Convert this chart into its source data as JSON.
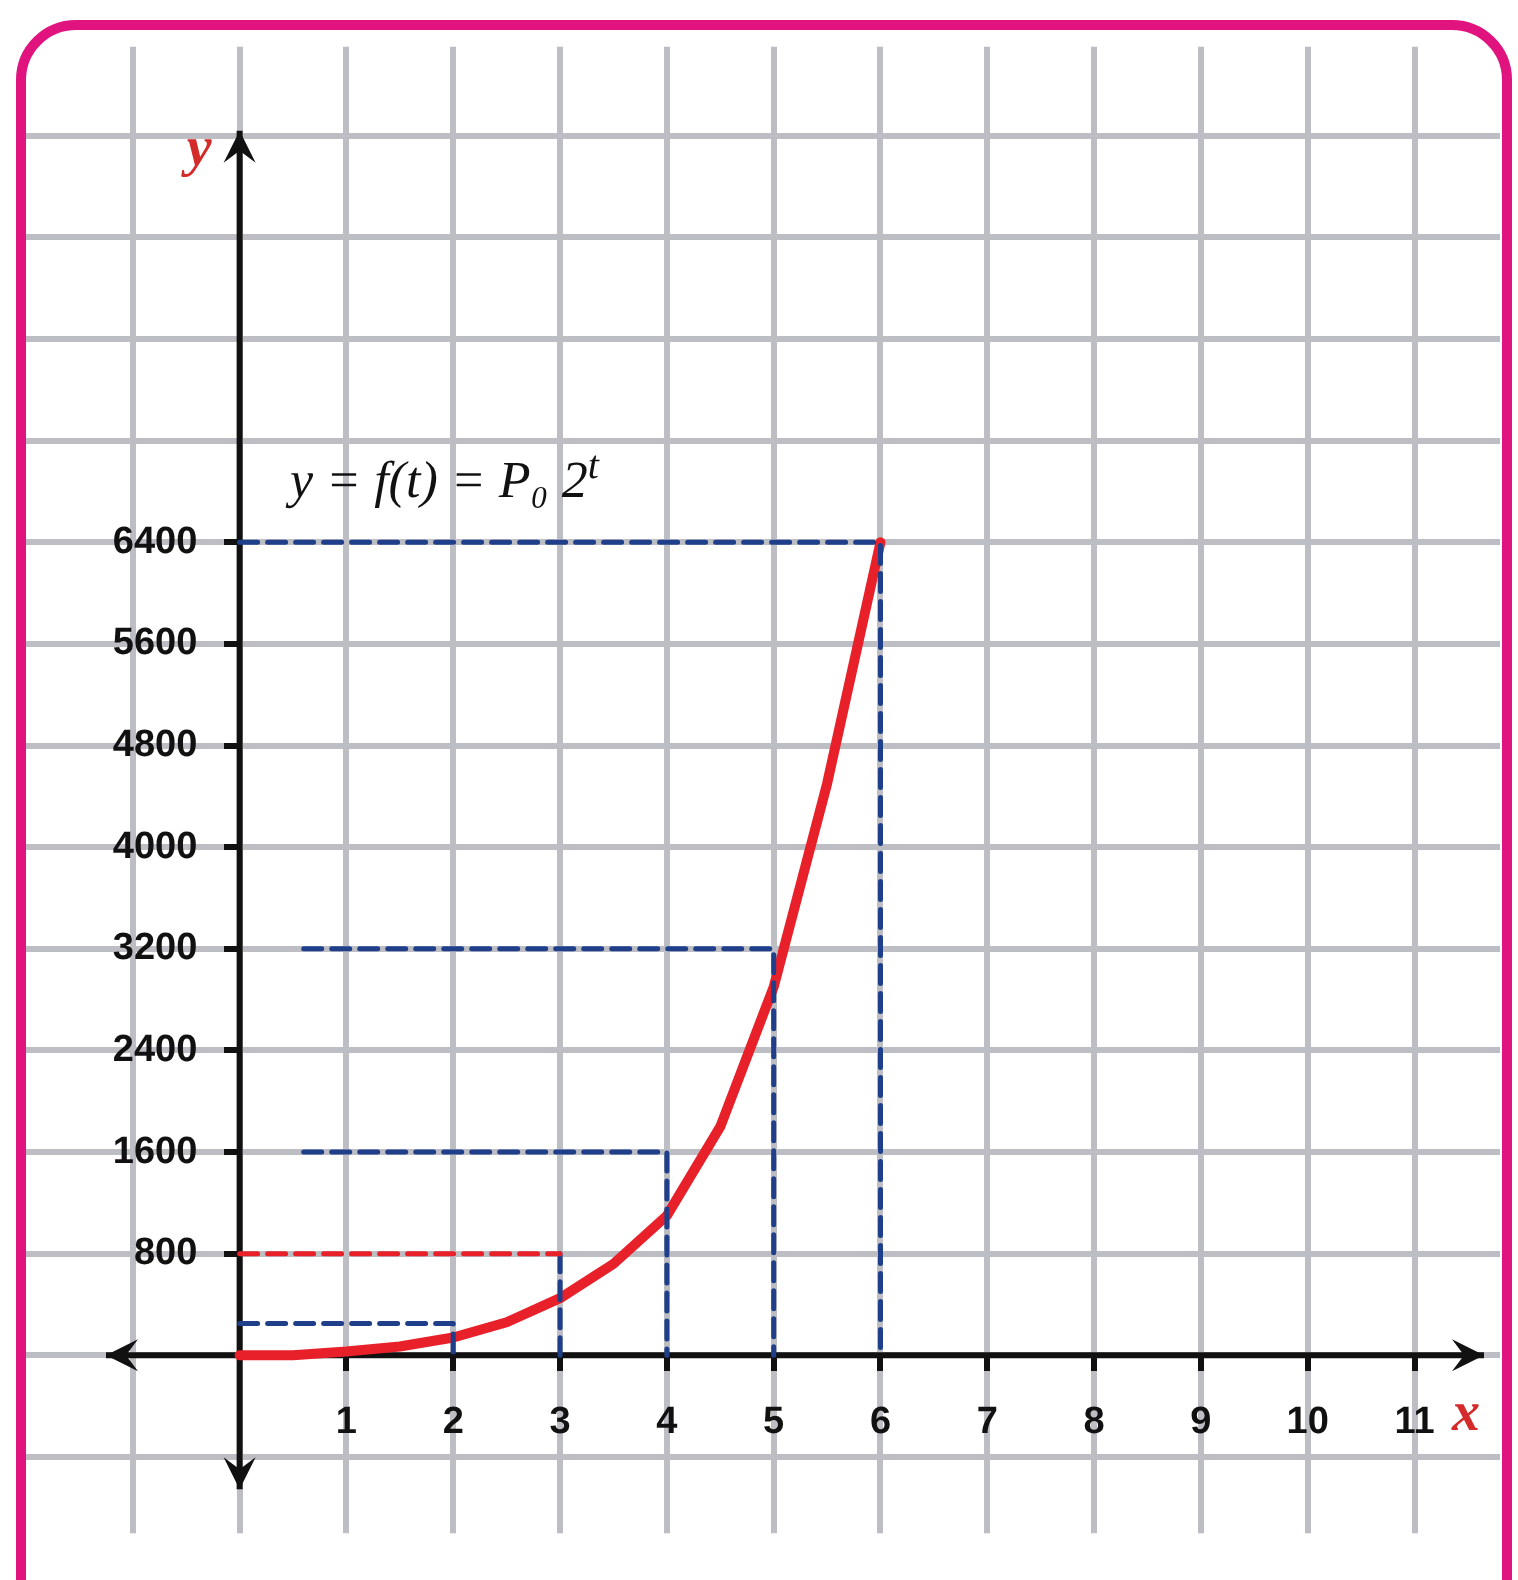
{
  "chart_data": {
    "type": "line",
    "xlabel": "x",
    "ylabel": "y",
    "xlim": [
      -2,
      11.8
    ],
    "ylim": [
      -1400,
      10300
    ],
    "xticks": [
      {
        "value": -1,
        "label": null
      },
      {
        "value": 0,
        "label": null
      },
      1,
      2,
      3,
      4,
      5,
      6,
      7,
      8,
      9,
      10,
      11
    ],
    "yticks": [
      {
        "value": -800,
        "label": null
      },
      {
        "value": 0,
        "label": null
      },
      800,
      1600,
      2400,
      3200,
      4000,
      4800,
      5600,
      6400,
      {
        "value": 7200,
        "label": null
      },
      {
        "value": 8000,
        "label": null
      },
      {
        "value": 8800,
        "label": null
      },
      {
        "value": 9600,
        "label": null
      }
    ],
    "grid": true,
    "legend": false,
    "annotations": [
      "y = f(t) = P₀ 2$^{t}$"
    ],
    "series": [
      {
        "type": "line",
        "color": "#1f3f8a",
        "x": [
          0,
          2,
          2
        ],
        "values": [
          250,
          250,
          0
        ],
        "marker": "none",
        "line_style": "dashed"
      },
      {
        "type": "line",
        "color": "#e8202a",
        "x": [
          0,
          3
        ],
        "values": [
          800,
          800
        ],
        "marker": "none",
        "line_style": "dashed"
      },
      {
        "type": "line",
        "color": "#1f3f8a",
        "x": [
          3,
          3
        ],
        "values": [
          800,
          0
        ],
        "marker": "none",
        "line_style": "dashed"
      },
      {
        "type": "line",
        "color": "#1f3f8a",
        "x": [
          0.6,
          4,
          4
        ],
        "values": [
          1600,
          1600,
          0
        ],
        "marker": "none",
        "line_style": "dashed"
      },
      {
        "type": "line",
        "color": "#1f3f8a",
        "x": [
          0.6,
          5,
          5
        ],
        "values": [
          3200,
          3200,
          0
        ],
        "marker": "none",
        "line_style": "dashed"
      },
      {
        "type": "line",
        "color": "#1f3f8a",
        "x": [
          0,
          6,
          6
        ],
        "values": [
          6400,
          6400,
          0
        ],
        "marker": "none",
        "line_style": "dashed"
      },
      {
        "type": "line",
        "color": "#e8202a",
        "x": [
          0,
          0.5,
          1,
          1.5,
          2,
          2.5,
          3,
          3.5,
          4,
          4.5,
          5,
          5.5,
          6
        ],
        "values": [
          0,
          0,
          30,
          70,
          140,
          260,
          450,
          720,
          1100,
          1800,
          2900,
          4500,
          6400
        ],
        "marker": "none",
        "line_style": "solid"
      }
    ]
  }
}
